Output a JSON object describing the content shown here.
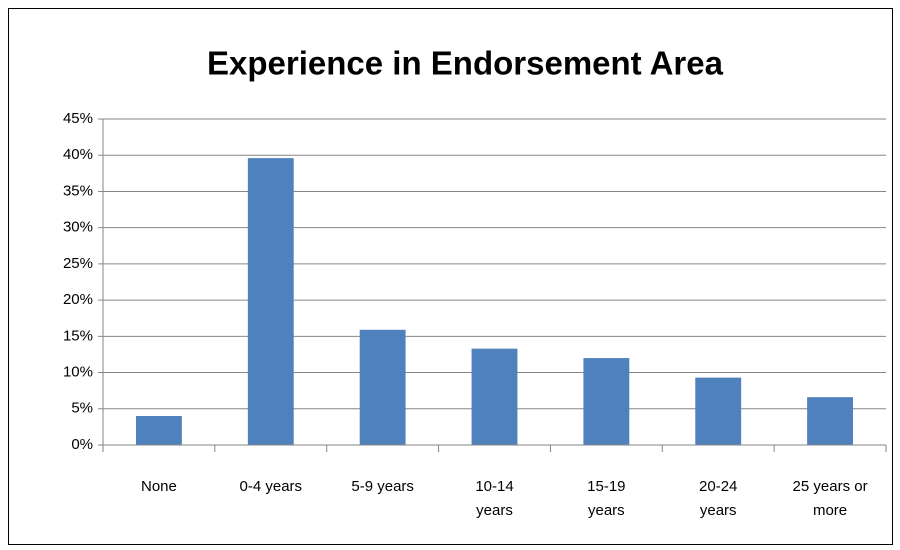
{
  "chart_data": {
    "type": "bar",
    "title": "Experience in Endorsement Area",
    "categories": [
      "None",
      "0-4 years",
      "5-9 years",
      "10-14 years",
      "15-19 years",
      "20-24 years",
      "25 years or more"
    ],
    "values": [
      4.0,
      39.6,
      15.9,
      13.3,
      12.0,
      9.3,
      6.6
    ],
    "color": "#4f81bd",
    "ylim": [
      0,
      45
    ],
    "yticks": [
      {
        "value": 0,
        "label": "0%"
      },
      {
        "value": 5,
        "label": "5%"
      },
      {
        "value": 10,
        "label": "10%"
      },
      {
        "value": 15,
        "label": "15%"
      },
      {
        "value": 20,
        "label": "20%"
      },
      {
        "value": 25,
        "label": "25%"
      },
      {
        "value": 30,
        "label": "30%"
      },
      {
        "value": 35,
        "label": "35%"
      },
      {
        "value": 40,
        "label": "40%"
      },
      {
        "value": 45,
        "label": "45%"
      }
    ],
    "grid": true
  }
}
